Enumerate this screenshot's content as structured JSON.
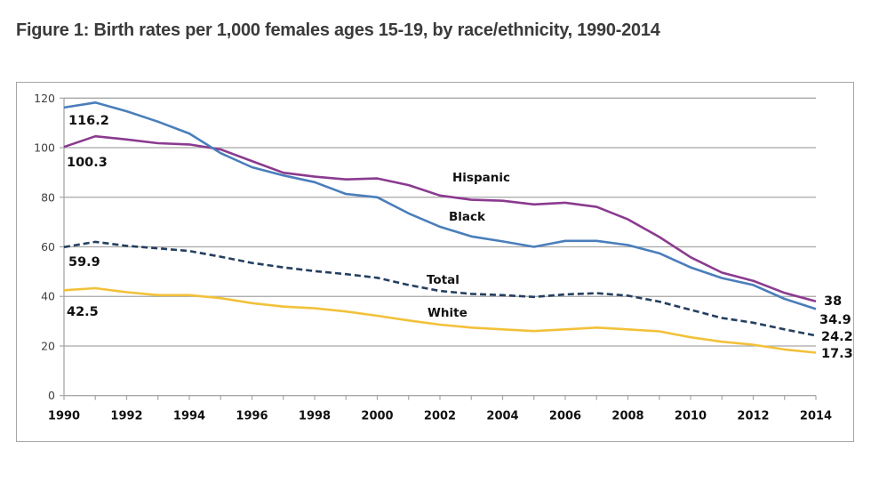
{
  "page": {
    "title": "Figure 1: Birth rates per 1,000 females ages 15-19, by race/ethnicity, 1990-2014"
  },
  "chart_data": {
    "type": "line",
    "title": "Figure 1: Birth rates per 1,000 females ages 15-19, by race/ethnicity, 1990-2014",
    "xlabel": "",
    "ylabel": "",
    "x": [
      1990,
      1991,
      1992,
      1993,
      1994,
      1995,
      1996,
      1997,
      1998,
      1999,
      2000,
      2001,
      2002,
      2003,
      2004,
      2005,
      2006,
      2007,
      2008,
      2009,
      2010,
      2011,
      2012,
      2013,
      2014
    ],
    "xlim": [
      1990,
      2014
    ],
    "ylim": [
      0,
      120
    ],
    "x_ticks": [
      "1990",
      "1992",
      "1994",
      "1996",
      "1998",
      "2000",
      "2002",
      "2004",
      "2006",
      "2008",
      "2010",
      "2012",
      "2014"
    ],
    "y_ticks": [
      "0",
      "20",
      "40",
      "60",
      "80",
      "100",
      "120"
    ],
    "grid": "horizontal",
    "legend": "none (inline series labels)",
    "series": [
      {
        "name": "Hispanic",
        "color": "#8B3A8F",
        "dash": "solid",
        "values": [
          100.3,
          104.6,
          103.3,
          101.8,
          101.3,
          99.3,
          94.6,
          89.9,
          88.3,
          87.2,
          87.6,
          84.9,
          80.7,
          79.0,
          78.6,
          77.1,
          77.8,
          76.1,
          71.1,
          64.0,
          55.8,
          49.6,
          46.3,
          41.4,
          38.0
        ]
      },
      {
        "name": "Black",
        "color": "#4A7EBB",
        "dash": "solid",
        "values": [
          116.2,
          118.2,
          114.7,
          110.5,
          105.7,
          97.8,
          92.1,
          88.8,
          86.1,
          81.3,
          80.0,
          73.5,
          68.1,
          64.2,
          62.2,
          60.0,
          62.4,
          62.4,
          60.7,
          57.4,
          51.7,
          47.4,
          44.6,
          39.0,
          34.9
        ]
      },
      {
        "name": "Total",
        "color": "#243F60",
        "dash": "dashed",
        "values": [
          59.9,
          62.0,
          60.4,
          59.4,
          58.3,
          56.0,
          53.5,
          51.7,
          50.2,
          49.0,
          47.5,
          44.6,
          42.2,
          41.0,
          40.5,
          39.8,
          40.8,
          41.3,
          40.3,
          37.9,
          34.6,
          31.3,
          29.4,
          26.7,
          24.2
        ]
      },
      {
        "name": "White",
        "color": "#F2C13A",
        "dash": "solid",
        "values": [
          42.5,
          43.3,
          41.7,
          40.5,
          40.5,
          39.3,
          37.3,
          35.9,
          35.2,
          33.9,
          32.2,
          30.3,
          28.6,
          27.4,
          26.7,
          26.0,
          26.7,
          27.4,
          26.7,
          25.9,
          23.5,
          21.7,
          20.5,
          18.6,
          17.3
        ]
      }
    ],
    "annotations": {
      "start_labels": [
        "116.2",
        "100.3",
        "59.9",
        "42.5"
      ],
      "end_labels": [
        "38",
        "34.9",
        "24.2",
        "17.3"
      ],
      "series_labels": [
        "Hispanic",
        "Black",
        "Total",
        "White"
      ]
    }
  }
}
